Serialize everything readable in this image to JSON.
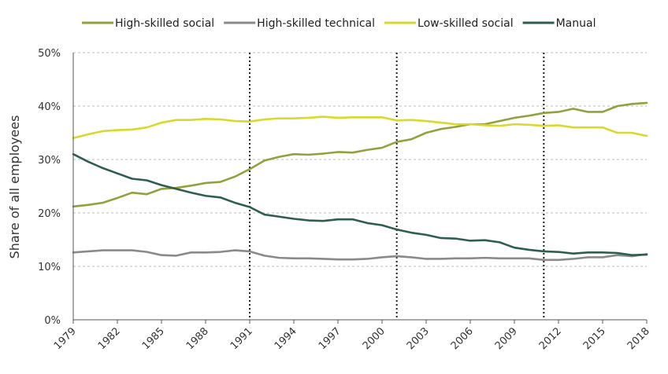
{
  "chart_data": {
    "type": "line",
    "title": "",
    "xlabel": "",
    "ylabel": "Share of all employees",
    "ylim": [
      0,
      50
    ],
    "yticks": [
      "0%",
      "10%",
      "20%",
      "30%",
      "40%",
      "50%"
    ],
    "ytick_values": [
      0,
      10,
      20,
      30,
      40,
      50
    ],
    "xlim": [
      1979,
      2018
    ],
    "xticks": [
      1979,
      1982,
      1985,
      1988,
      1991,
      1994,
      1997,
      2000,
      2003,
      2006,
      2009,
      2012,
      2015,
      2018
    ],
    "grid": "horizontal dashed",
    "legend_position": "top",
    "reference_lines_x": [
      1991,
      2001,
      2011
    ],
    "x": [
      1979,
      1980,
      1981,
      1982,
      1983,
      1984,
      1985,
      1986,
      1987,
      1988,
      1989,
      1990,
      1991,
      1992,
      1993,
      1994,
      1995,
      1996,
      1997,
      1998,
      1999,
      2000,
      2001,
      2002,
      2003,
      2004,
      2005,
      2006,
      2007,
      2008,
      2009,
      2010,
      2011,
      2012,
      2013,
      2014,
      2015,
      2016,
      2017,
      2018
    ],
    "series": [
      {
        "name": "High-skilled social",
        "color": "#8fa33c",
        "values": [
          21.2,
          21.5,
          21.9,
          22.8,
          23.8,
          23.5,
          24.5,
          24.7,
          25.1,
          25.6,
          25.8,
          26.8,
          28.2,
          29.8,
          30.5,
          31.0,
          30.9,
          31.1,
          31.4,
          31.3,
          31.8,
          32.2,
          33.3,
          33.8,
          35.0,
          35.7,
          36.1,
          36.6,
          36.6,
          37.2,
          37.8,
          38.2,
          38.7,
          38.9,
          39.5,
          38.9,
          38.9,
          40.0,
          40.4,
          40.6
        ]
      },
      {
        "name": "High-skilled technical",
        "color": "#8a8a8a",
        "values": [
          12.6,
          12.8,
          13.0,
          13.0,
          13.0,
          12.7,
          12.1,
          12.0,
          12.6,
          12.6,
          12.7,
          13.0,
          12.8,
          12.0,
          11.6,
          11.5,
          11.5,
          11.4,
          11.3,
          11.3,
          11.4,
          11.7,
          11.9,
          11.7,
          11.4,
          11.4,
          11.5,
          11.5,
          11.6,
          11.5,
          11.5,
          11.5,
          11.2,
          11.2,
          11.4,
          11.7,
          11.7,
          12.1,
          11.9,
          12.3
        ]
      },
      {
        "name": "Low-skilled social",
        "color": "#d9d92b",
        "values": [
          34.0,
          34.7,
          35.3,
          35.5,
          35.6,
          36.0,
          36.9,
          37.4,
          37.4,
          37.6,
          37.5,
          37.2,
          37.1,
          37.5,
          37.7,
          37.7,
          37.8,
          38.0,
          37.8,
          37.9,
          37.9,
          37.9,
          37.3,
          37.4,
          37.2,
          36.9,
          36.6,
          36.6,
          36.4,
          36.3,
          36.6,
          36.5,
          36.3,
          36.4,
          36.0,
          36.0,
          36.0,
          35.0,
          35.0,
          34.4
        ]
      },
      {
        "name": "Manual",
        "color": "#2e5f4c",
        "values": [
          31.0,
          29.6,
          28.4,
          27.4,
          26.4,
          26.1,
          25.2,
          24.5,
          23.8,
          23.2,
          22.9,
          21.9,
          21.1,
          19.7,
          19.3,
          18.9,
          18.6,
          18.5,
          18.8,
          18.8,
          18.1,
          17.7,
          16.9,
          16.3,
          15.9,
          15.3,
          15.2,
          14.8,
          14.9,
          14.5,
          13.5,
          13.1,
          12.8,
          12.7,
          12.4,
          12.6,
          12.6,
          12.5,
          12.1,
          12.2
        ]
      }
    ]
  }
}
